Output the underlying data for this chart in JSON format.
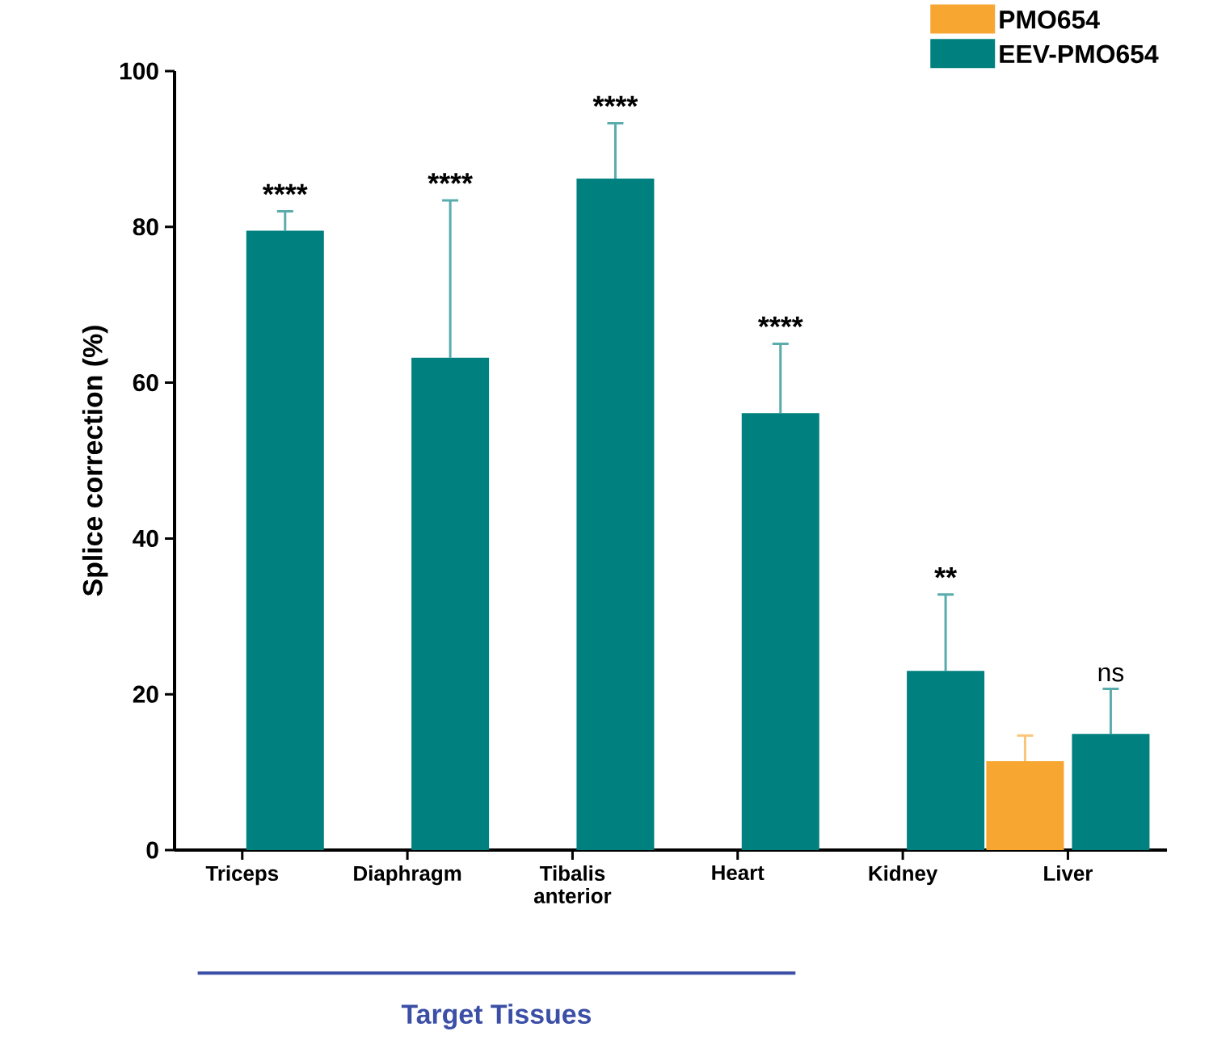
{
  "chart_data": {
    "type": "bar",
    "ylabel": "Splice correction (%)",
    "categories": [
      "Triceps",
      "Diaphragm",
      "Tibalis anterior",
      "Heart",
      "Kidney",
      "Liver"
    ],
    "series": [
      {
        "name": "PMO654",
        "color": "#f7a632",
        "values": [
          null,
          null,
          null,
          null,
          null,
          11.4
        ],
        "errors": [
          null,
          null,
          null,
          null,
          null,
          [
            11.4,
            14.7
          ]
        ]
      },
      {
        "name": "EEV-PMO654",
        "color": "#00807f",
        "values": [
          79.5,
          63.2,
          86.2,
          56.1,
          23.0,
          14.9
        ],
        "errors": [
          [
            79.5,
            82.0
          ],
          [
            63.2,
            83.4
          ],
          [
            86.2,
            93.3
          ],
          [
            56.1,
            65.0
          ],
          [
            23.0,
            32.8
          ],
          [
            14.9,
            20.7
          ]
        ]
      }
    ],
    "ylim": [
      0,
      100
    ],
    "yticks": [
      0,
      20,
      40,
      60,
      80,
      100
    ],
    "grid": false,
    "legend": "top right",
    "annotations": [
      "****",
      "****",
      "****",
      "****",
      "**",
      "ns",
      "Target Tissues"
    ]
  }
}
